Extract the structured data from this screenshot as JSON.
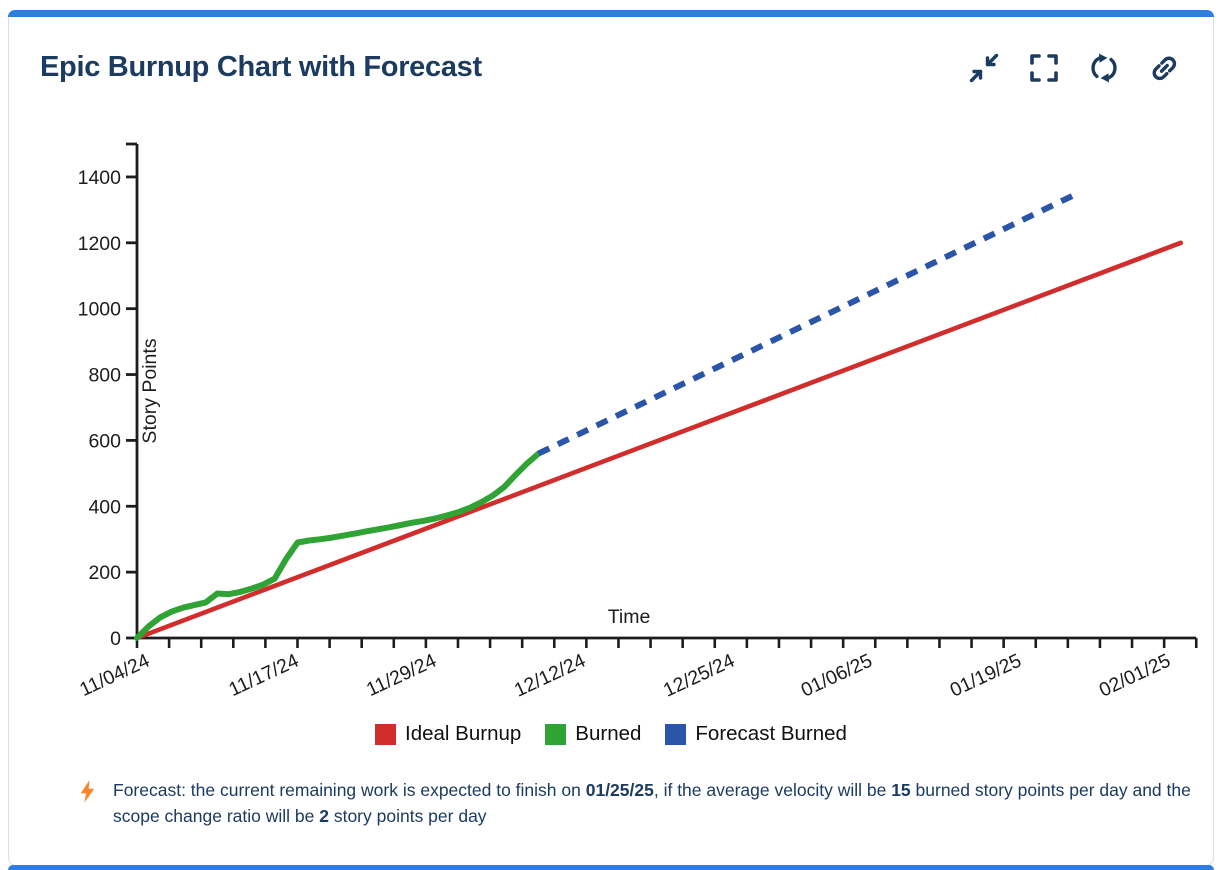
{
  "header": {
    "title": "Epic Burnup Chart with Forecast",
    "actions": [
      {
        "label": "collapse",
        "icon": "compress-arrows-icon"
      },
      {
        "label": "fullscreen",
        "icon": "expand-brackets-icon"
      },
      {
        "label": "refresh",
        "icon": "refresh-icon"
      },
      {
        "label": "link",
        "icon": "link-icon"
      }
    ]
  },
  "colors": {
    "accent_blue": "#2f7de1",
    "navy_text": "#1c3b60",
    "ideal_red": "#d22d2d",
    "burned_green": "#30a335",
    "forecast_blue": "#2b55a8",
    "bolt_orange": "#f8862b",
    "axis_black": "#1d1d1d"
  },
  "chart_data": {
    "type": "line",
    "title": "",
    "xlabel": "Time",
    "ylabel": "Story Points",
    "ylim": [
      0,
      1500
    ],
    "yticks": [
      0,
      200,
      400,
      600,
      800,
      1000,
      1200,
      1400
    ],
    "x_range": [
      "11/04/24",
      "02/04/25"
    ],
    "xtick_labels": [
      "11/04/24",
      "11/17/24",
      "11/29/24",
      "12/12/24",
      "12/25/24",
      "01/06/25",
      "01/19/25",
      "02/01/25"
    ],
    "grid": false,
    "legend_position": "bottom",
    "series": [
      {
        "name": "Ideal Burnup",
        "color": "#d22d2d",
        "style": "solid",
        "points": [
          [
            "11/04/24",
            0
          ],
          [
            "02/03/25",
            1200
          ]
        ]
      },
      {
        "name": "Burned",
        "color": "#30a335",
        "style": "solid",
        "points": [
          [
            "11/04/24",
            0
          ],
          [
            "11/05/24",
            35
          ],
          [
            "11/06/24",
            62
          ],
          [
            "11/07/24",
            80
          ],
          [
            "11/08/24",
            92
          ],
          [
            "11/09/24",
            100
          ],
          [
            "11/10/24",
            108
          ],
          [
            "11/11/24",
            135
          ],
          [
            "11/12/24",
            133
          ],
          [
            "11/13/24",
            140
          ],
          [
            "11/14/24",
            150
          ],
          [
            "11/15/24",
            162
          ],
          [
            "11/16/24",
            180
          ],
          [
            "11/17/24",
            240
          ],
          [
            "11/18/24",
            290
          ],
          [
            "11/19/24",
            296
          ],
          [
            "11/20/24",
            300
          ],
          [
            "11/21/24",
            305
          ],
          [
            "11/22/24",
            311
          ],
          [
            "11/23/24",
            317
          ],
          [
            "11/24/24",
            324
          ],
          [
            "11/25/24",
            330
          ],
          [
            "11/26/24",
            336
          ],
          [
            "11/27/24",
            343
          ],
          [
            "11/28/24",
            350
          ],
          [
            "11/29/24",
            356
          ],
          [
            "11/30/24",
            363
          ],
          [
            "12/01/24",
            372
          ],
          [
            "12/02/24",
            382
          ],
          [
            "12/03/24",
            395
          ],
          [
            "12/04/24",
            412
          ],
          [
            "12/05/24",
            432
          ],
          [
            "12/06/24",
            458
          ],
          [
            "12/07/24",
            495
          ],
          [
            "12/08/24",
            530
          ],
          [
            "12/09/24",
            560
          ]
        ]
      },
      {
        "name": "Forecast Burned",
        "color": "#2b55a8",
        "style": "dashed",
        "points": [
          [
            "12/09/24",
            560
          ],
          [
            "01/25/25",
            1350
          ]
        ]
      }
    ]
  },
  "legend": [
    {
      "label": "Ideal Burnup",
      "color": "#d22d2d"
    },
    {
      "label": "Burned",
      "color": "#30a335"
    },
    {
      "label": "Forecast Burned",
      "color": "#2b55a8"
    }
  ],
  "footer": {
    "icon": "lightning-bolt-icon",
    "segments": [
      {
        "text": "Forecast: the current remaining work is expected to finish on ",
        "bold": false
      },
      {
        "text": "01/25/25",
        "bold": true
      },
      {
        "text": ", if the average velocity will be ",
        "bold": false
      },
      {
        "text": "15",
        "bold": true
      },
      {
        "text": " burned story points per day and the scope change ratio will be ",
        "bold": false
      },
      {
        "text": "2",
        "bold": true
      },
      {
        "text": " story points per day",
        "bold": false
      }
    ]
  }
}
